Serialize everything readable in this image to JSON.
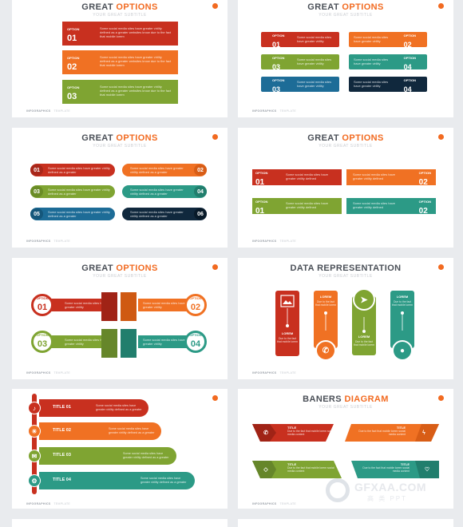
{
  "colors": {
    "red": "#c8301f",
    "orange": "#f07123",
    "green": "#7fa432",
    "teal": "#2c9a86",
    "blue": "#1d6c97",
    "navy": "#10283d",
    "accent": "#f26a20"
  },
  "common": {
    "great": "GREAT",
    "options": "OPTIONS",
    "subtitle": "YOUR GREAT SUBTITLE",
    "option_word": "OPTION",
    "footer_a": "INFOGRAPHICS",
    "footer_b": "TEMPLATE",
    "desc3": "Some social media sites have greater virility defined as a greater websites know due to the fact that mobile lorem",
    "desc2": "Some social media sites have greater virility",
    "desc2b": "Some social media sites have greater virility defined"
  },
  "slide1": {
    "numbers": [
      "01",
      "02",
      "03"
    ]
  },
  "slide2": {
    "numbers": [
      "01",
      "02",
      "03",
      "04",
      "03",
      "04"
    ]
  },
  "slide3": {
    "numbers": [
      "01",
      "02",
      "03",
      "04",
      "05",
      "06"
    ],
    "desc": "Some social media sites have greater virility defined as a greater"
  },
  "slide4": {
    "numbers": [
      "01",
      "02",
      "01",
      "02"
    ]
  },
  "slide5": {
    "numbers": [
      "01",
      "02",
      "03",
      "04"
    ],
    "desc": "Some social media sites have greater virility"
  },
  "slide6": {
    "title": "DATA REPRESENTATION",
    "lorem": "LOREM",
    "desc": "Due to the fact that mobile lorem"
  },
  "slide7": {
    "titles": [
      "TITLE 01",
      "TITLE 02",
      "TITLE 03",
      "TITLE 04"
    ],
    "desc": "Some social media sites have greater virility defined as a greater"
  },
  "slide8": {
    "title_a": "BANERS",
    "title_b": "DIAGRAM",
    "label": "TITLE",
    "desc": "Due to the fact that mobile lorem social media content"
  },
  "watermark": {
    "text": "GFXAA.COM",
    "sub": "高 类 PPT"
  }
}
